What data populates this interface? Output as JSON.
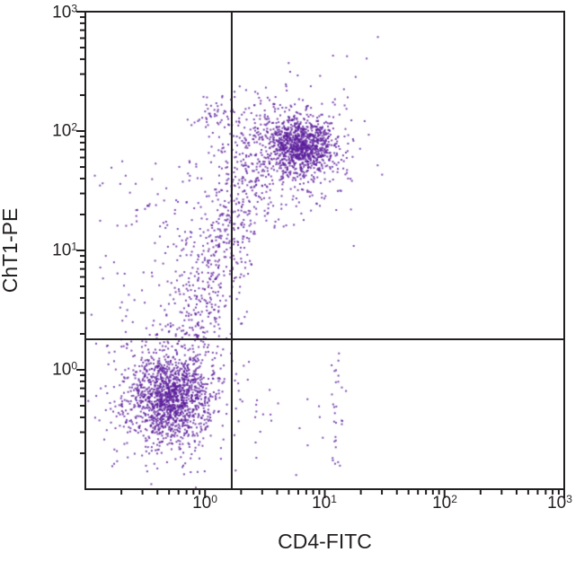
{
  "chart_data": {
    "type": "scatter",
    "subtype": "flow-cytometry-quadrant-dot-plot",
    "title": "",
    "xlabel": "CD4-FITC",
    "ylabel": "ChT1-PE",
    "xscale": "log",
    "yscale": "log",
    "xlim": [
      0.1,
      1000
    ],
    "ylim": [
      0.1,
      1000
    ],
    "grid": false,
    "legend": "none",
    "x_tick_labels": [
      {
        "base": "10",
        "exp": "0",
        "value": 1
      },
      {
        "base": "10",
        "exp": "1",
        "value": 10
      },
      {
        "base": "10",
        "exp": "2",
        "value": 100
      },
      {
        "base": "10",
        "exp": "3",
        "value": 1000
      }
    ],
    "y_tick_labels": [
      {
        "base": "10",
        "exp": "3",
        "value": 1000
      },
      {
        "base": "10",
        "exp": "2",
        "value": 100
      },
      {
        "base": "10",
        "exp": "1",
        "value": 10
      },
      {
        "base": "10",
        "exp": "0",
        "value": 1
      }
    ],
    "minor_ticks_per_decade": [
      2,
      3,
      4,
      5,
      6,
      7,
      8,
      9
    ],
    "quadrant_gates": {
      "x_value": 1.67,
      "y_value": 1.8
    },
    "dot_color": "#5c1f9c",
    "dot_alpha": 0.8,
    "dot_size_px": 2,
    "frame_color": "#231f20",
    "random_seed": 20240607,
    "populations": [
      {
        "name": "double-negative-core",
        "kind": "gaussian",
        "center_log10": [
          -0.3,
          -0.23
        ],
        "sigma_log10": [
          0.17,
          0.19
        ],
        "n": 1250,
        "approx_center_value": [
          0.5,
          0.6
        ]
      },
      {
        "name": "double-negative-halo",
        "kind": "gaussian",
        "center_log10": [
          -0.28,
          -0.25
        ],
        "sigma_log10": [
          0.3,
          0.34
        ],
        "n": 320
      },
      {
        "name": "double-positive-core",
        "kind": "gaussian",
        "center_log10": [
          0.8,
          1.88
        ],
        "sigma_log10": [
          0.14,
          0.12
        ],
        "n": 950,
        "approx_center_value": [
          6.3,
          76
        ]
      },
      {
        "name": "double-positive-halo",
        "kind": "gaussian",
        "center_log10": [
          0.76,
          1.82
        ],
        "sigma_log10": [
          0.27,
          0.25
        ],
        "n": 280
      },
      {
        "name": "transitional-plume",
        "kind": "band",
        "from_log10": [
          -0.12,
          0.3
        ],
        "to_log10": [
          0.5,
          2.05
        ],
        "sigma_log10": [
          0.14,
          0.22
        ],
        "n": 620
      },
      {
        "name": "upper-left-clump",
        "kind": "gaussian",
        "center_log10": [
          0.12,
          2.12
        ],
        "sigma_log10": [
          0.1,
          0.09
        ],
        "n": 55
      },
      {
        "name": "left-scatter",
        "kind": "uniform",
        "x_range_log10": [
          -1.0,
          -0.05
        ],
        "y_range_log10": [
          0.15,
          1.75
        ],
        "x_bias": 0.55,
        "n": 130
      },
      {
        "name": "lower-right-column",
        "kind": "column",
        "x_center_log10": 1.1,
        "x_sigma_log10": 0.03,
        "y_range_log10": [
          -0.85,
          0.2
        ],
        "n": 28
      },
      {
        "name": "lower-right-sparse",
        "kind": "uniform",
        "x_range_log10": [
          0.3,
          1.25
        ],
        "y_range_log10": [
          -0.9,
          0.15
        ],
        "x_bias": 1,
        "n": 14
      },
      {
        "name": "high-outliers",
        "kind": "uniform",
        "x_range_log10": [
          0.55,
          1.45
        ],
        "y_range_log10": [
          2.25,
          2.8
        ],
        "x_bias": 1,
        "n": 9
      }
    ]
  }
}
